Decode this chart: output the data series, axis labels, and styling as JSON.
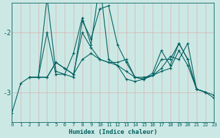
{
  "xlabel": "Humidex (Indice chaleur)",
  "bg_color": "#cce8e4",
  "line_color": "#006060",
  "grid_color": "#b0d8d0",
  "xlim": [
    0,
    23
  ],
  "ylim": [
    -3.5,
    -1.5
  ],
  "yticks": [
    -3,
    -2
  ],
  "ytick_labels": [
    "-3",
    "-2"
  ],
  "xticks": [
    0,
    1,
    2,
    3,
    4,
    5,
    6,
    7,
    8,
    9,
    10,
    11,
    12,
    13,
    14,
    15,
    16,
    17,
    18,
    19,
    20,
    21,
    22,
    23
  ],
  "series": [
    [
      0,
      -3.35,
      1,
      -2.85,
      2,
      -2.75,
      3,
      -2.75,
      4,
      -2.0,
      5,
      -2.7,
      6,
      -2.7,
      7,
      -2.75,
      8,
      -1.8,
      9,
      -2.1,
      10,
      -1.6,
      11,
      -1.55,
      12,
      -2.2,
      13,
      -2.5,
      14,
      -2.75,
      15,
      -2.75,
      16,
      -2.72,
      17,
      -2.65,
      18,
      -2.6,
      19,
      -2.3,
      20,
      -2.55,
      21,
      -2.95,
      22,
      -3.0,
      23,
      -3.05
    ],
    [
      2,
      -2.75,
      3,
      -2.75,
      4,
      -2.75,
      5,
      -2.5,
      6,
      -2.6,
      7,
      -2.7,
      8,
      -2.0,
      9,
      -2.25,
      10,
      -2.45,
      11,
      -2.5,
      12,
      -2.5,
      13,
      -2.45,
      14,
      -2.75,
      15,
      -2.78,
      16,
      -2.72,
      17,
      -2.6,
      18,
      -2.4,
      19,
      -2.45,
      20,
      -2.18,
      21,
      -2.95,
      22,
      -3.0
    ],
    [
      2,
      -2.75,
      3,
      -2.75,
      4,
      -1.4,
      5,
      -2.65,
      6,
      -2.7,
      7,
      -2.35,
      8,
      -1.75,
      9,
      -2.2,
      10,
      -1.15,
      11,
      -2.45,
      12,
      -2.55,
      13,
      -2.65,
      14,
      -2.75,
      15,
      -2.78,
      16,
      -2.72,
      17,
      -2.45,
      18,
      -2.45,
      19,
      -2.18,
      20,
      -2.45,
      21,
      -2.95,
      22,
      -3.0
    ],
    [
      3,
      -2.75,
      4,
      -2.75,
      5,
      -2.5,
      6,
      -2.6,
      7,
      -2.7,
      8,
      -2.45,
      9,
      -2.35,
      10,
      -2.45,
      11,
      -2.5,
      12,
      -2.55,
      13,
      -2.78,
      14,
      -2.82,
      15,
      -2.78,
      16,
      -2.68,
      17,
      -2.3,
      18,
      -2.55,
      19,
      -2.18,
      20,
      -2.45,
      21,
      -2.95,
      22,
      -3.0,
      23,
      -3.1
    ]
  ]
}
